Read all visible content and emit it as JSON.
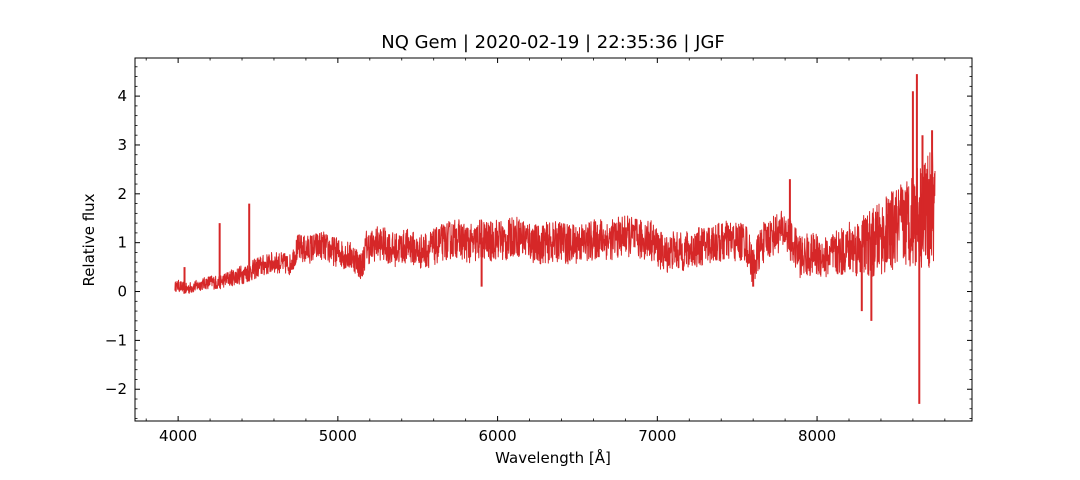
{
  "chart_data": {
    "type": "line",
    "title": "NQ Gem | 2020-02-19 | 22:35:36 | JGF",
    "xlabel": "Wavelength [Å]",
    "ylabel": "Relative flux",
    "xlim": [
      3730,
      8970
    ],
    "ylim": [
      -2.65,
      4.78
    ],
    "xticks": [
      4000,
      5000,
      6000,
      7000,
      8000
    ],
    "xtick_labels": [
      "4000",
      "5000",
      "6000",
      "7000",
      "8000"
    ],
    "yticks": [
      -2,
      -1,
      0,
      1,
      2,
      3,
      4
    ],
    "ytick_labels": [
      "−2",
      "−1",
      "0",
      "1",
      "2",
      "3",
      "4"
    ],
    "grid": false,
    "series": [
      {
        "color": "#d62728",
        "x": [
          3980,
          4000,
          4050,
          4100,
          4150,
          4200,
          4250,
          4300,
          4350,
          4400,
          4450,
          4500,
          4550,
          4600,
          4650,
          4700,
          4750,
          4800,
          4850,
          4900,
          4950,
          5000,
          5050,
          5100,
          5150,
          5180,
          5200,
          5250,
          5300,
          5350,
          5400,
          5450,
          5500,
          5550,
          5600,
          5650,
          5700,
          5750,
          5800,
          5850,
          5900,
          5950,
          6000,
          6050,
          6100,
          6150,
          6200,
          6250,
          6300,
          6350,
          6400,
          6450,
          6500,
          6550,
          6600,
          6650,
          6700,
          6750,
          6800,
          6850,
          6900,
          6950,
          7000,
          7050,
          7100,
          7150,
          7200,
          7250,
          7300,
          7350,
          7400,
          7450,
          7500,
          7550,
          7600,
          7650,
          7700,
          7750,
          7800,
          7850,
          7900,
          7950,
          8000,
          8050,
          8100,
          8150,
          8200,
          8250,
          8300,
          8350,
          8400,
          8450,
          8500,
          8550,
          8600,
          8650,
          8700,
          8740
        ],
        "y": [
          0.1,
          0.12,
          0.05,
          0.1,
          0.15,
          0.2,
          0.18,
          0.25,
          0.3,
          0.35,
          0.4,
          0.5,
          0.55,
          0.6,
          0.58,
          0.55,
          0.9,
          0.85,
          0.9,
          0.95,
          0.85,
          0.8,
          0.75,
          0.7,
          0.5,
          0.95,
          0.9,
          1.0,
          0.95,
          0.85,
          0.9,
          0.95,
          0.8,
          0.85,
          0.9,
          1.0,
          1.05,
          1.1,
          1.0,
          0.95,
          1.1,
          1.0,
          1.1,
          1.0,
          1.15,
          1.1,
          1.05,
          0.95,
          1.0,
          1.0,
          1.05,
          0.95,
          1.0,
          1.0,
          1.05,
          1.1,
          1.05,
          1.1,
          1.15,
          1.1,
          1.05,
          1.1,
          0.9,
          0.75,
          0.85,
          0.8,
          0.85,
          0.9,
          0.95,
          1.0,
          1.0,
          1.05,
          1.0,
          1.05,
          0.5,
          0.95,
          1.1,
          1.2,
          1.25,
          0.95,
          0.7,
          0.75,
          0.75,
          0.7,
          0.75,
          0.8,
          0.9,
          0.9,
          0.95,
          1.0,
          1.1,
          1.2,
          1.3,
          1.4,
          1.5,
          1.6,
          1.65,
          1.7
        ],
        "noise": [
          0.1,
          0.12,
          0.12,
          0.12,
          0.12,
          0.14,
          0.15,
          0.15,
          0.18,
          0.2,
          0.2,
          0.22,
          0.22,
          0.22,
          0.22,
          0.22,
          0.28,
          0.3,
          0.3,
          0.3,
          0.3,
          0.3,
          0.3,
          0.3,
          0.3,
          0.35,
          0.35,
          0.35,
          0.35,
          0.35,
          0.35,
          0.35,
          0.35,
          0.38,
          0.38,
          0.38,
          0.4,
          0.4,
          0.4,
          0.42,
          0.42,
          0.42,
          0.42,
          0.42,
          0.42,
          0.42,
          0.42,
          0.42,
          0.42,
          0.42,
          0.42,
          0.42,
          0.42,
          0.42,
          0.42,
          0.42,
          0.42,
          0.42,
          0.42,
          0.42,
          0.42,
          0.42,
          0.4,
          0.4,
          0.4,
          0.4,
          0.4,
          0.4,
          0.4,
          0.42,
          0.42,
          0.42,
          0.42,
          0.42,
          0.4,
          0.42,
          0.42,
          0.42,
          0.42,
          0.42,
          0.45,
          0.45,
          0.45,
          0.45,
          0.45,
          0.5,
          0.55,
          0.6,
          0.65,
          0.7,
          0.75,
          0.8,
          0.85,
          0.9,
          1.0,
          1.1,
          1.2,
          1.2
        ],
        "features": [
          {
            "x": 4040,
            "y": 0.5
          },
          {
            "x": 4260,
            "y": 1.4
          },
          {
            "x": 4445,
            "y": 1.8
          },
          {
            "x": 5900,
            "y": 0.1
          },
          {
            "x": 7600,
            "y": 0.1
          },
          {
            "x": 7830,
            "y": 2.3
          },
          {
            "x": 8280,
            "y": -0.4
          },
          {
            "x": 8340,
            "y": -0.6
          },
          {
            "x": 8600,
            "y": 4.1
          },
          {
            "x": 8625,
            "y": 4.45
          },
          {
            "x": 8640,
            "y": -2.3
          },
          {
            "x": 8660,
            "y": 3.2
          },
          {
            "x": 8720,
            "y": 3.3
          }
        ]
      }
    ]
  }
}
